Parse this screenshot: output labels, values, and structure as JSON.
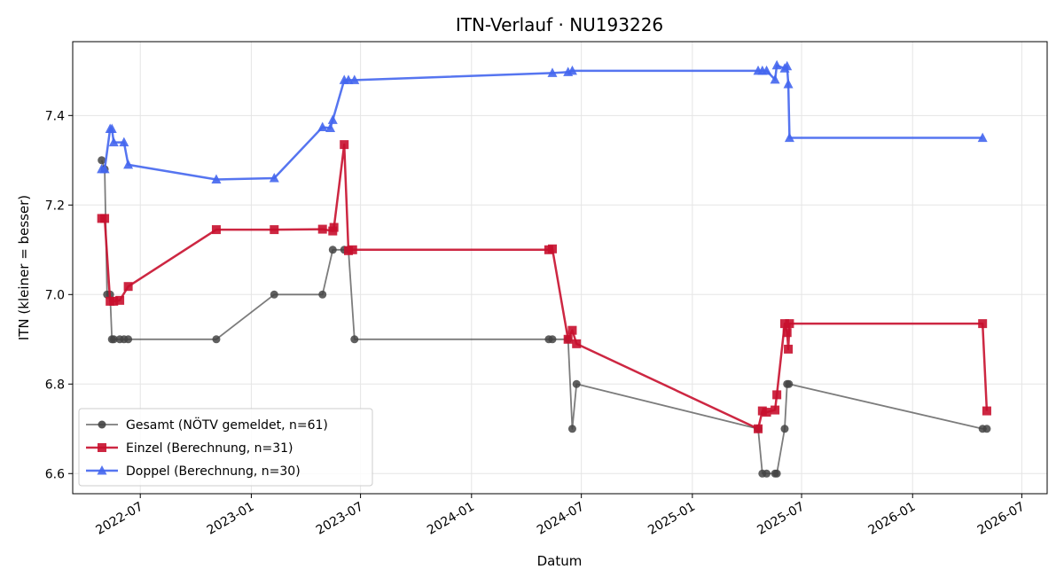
{
  "chart_data": {
    "type": "line",
    "title": "ITN-Verlauf · NU193226",
    "xlabel": "Datum",
    "ylabel": "ITN  (kleiner = besser)",
    "x_ticks": [
      "2022-07",
      "2023-01",
      "2023-07",
      "2024-01",
      "2024-07",
      "2025-01",
      "2025-07",
      "2026-01",
      "2026-07"
    ],
    "y_ticks": [
      6.6,
      6.8,
      7.0,
      7.2,
      7.4
    ],
    "xlim": [
      "2022-03-11",
      "2026-08-12"
    ],
    "ylim": [
      6.555,
      7.565
    ],
    "grid": true,
    "legend_position": "lower-left",
    "series": [
      {
        "name": "Gesamt (NÖTV gemeldet, n=61)",
        "color": "#444444",
        "marker": "circle",
        "points": [
          [
            "2022-04-28",
            7.3
          ],
          [
            "2022-05-03",
            7.28
          ],
          [
            "2022-05-07",
            7.0
          ],
          [
            "2022-05-12",
            7.0
          ],
          [
            "2022-05-15",
            6.9
          ],
          [
            "2022-05-18",
            6.9
          ],
          [
            "2022-05-28",
            6.9
          ],
          [
            "2022-06-04",
            6.9
          ],
          [
            "2022-06-11",
            6.9
          ],
          [
            "2022-11-04",
            6.9
          ],
          [
            "2023-02-08",
            7.0
          ],
          [
            "2023-04-29",
            7.0
          ],
          [
            "2023-05-16",
            7.1
          ],
          [
            "2023-06-04",
            7.1
          ],
          [
            "2023-06-11",
            7.1
          ],
          [
            "2023-06-21",
            6.9
          ],
          [
            "2024-05-08",
            6.9
          ],
          [
            "2024-05-14",
            6.9
          ],
          [
            "2024-06-09",
            6.9
          ],
          [
            "2024-06-16",
            6.7
          ],
          [
            "2024-06-23",
            6.8
          ],
          [
            "2025-04-20",
            6.7
          ],
          [
            "2025-04-27",
            6.6
          ],
          [
            "2025-05-04",
            6.6
          ],
          [
            "2025-05-18",
            6.6
          ],
          [
            "2025-05-21",
            6.6
          ],
          [
            "2025-06-03",
            6.7
          ],
          [
            "2025-06-07",
            6.8
          ],
          [
            "2025-06-10",
            6.8
          ],
          [
            "2026-04-27",
            6.7
          ],
          [
            "2026-05-04",
            6.7
          ]
        ]
      },
      {
        "name": "Einzel (Berechnung, n=31)",
        "color": "#C8102E",
        "marker": "square",
        "points": [
          [
            "2022-04-28",
            7.17
          ],
          [
            "2022-05-03",
            7.17
          ],
          [
            "2022-05-12",
            6.985
          ],
          [
            "2022-05-18",
            6.985
          ],
          [
            "2022-05-28",
            6.987
          ],
          [
            "2022-06-11",
            7.018
          ],
          [
            "2022-11-04",
            7.145
          ],
          [
            "2023-02-08",
            7.145
          ],
          [
            "2023-04-29",
            7.146
          ],
          [
            "2023-05-16",
            7.142
          ],
          [
            "2023-05-18",
            7.15
          ],
          [
            "2023-06-04",
            7.335
          ],
          [
            "2023-06-11",
            7.098
          ],
          [
            "2023-06-18",
            7.1
          ],
          [
            "2024-05-08",
            7.1
          ],
          [
            "2024-05-14",
            7.102
          ],
          [
            "2024-06-09",
            6.9
          ],
          [
            "2024-06-16",
            6.92
          ],
          [
            "2024-06-23",
            6.89
          ],
          [
            "2025-04-20",
            6.7
          ],
          [
            "2025-04-27",
            6.74
          ],
          [
            "2025-05-04",
            6.737
          ],
          [
            "2025-05-18",
            6.742
          ],
          [
            "2025-05-21",
            6.776
          ],
          [
            "2025-06-03",
            6.935
          ],
          [
            "2025-06-07",
            6.915
          ],
          [
            "2025-06-09",
            6.878
          ],
          [
            "2025-06-11",
            6.935
          ],
          [
            "2026-04-27",
            6.935
          ],
          [
            "2026-05-04",
            6.74
          ]
        ]
      },
      {
        "name": "Doppel (Berechnung, n=30)",
        "color": "#4466EE",
        "marker": "triangle",
        "points": [
          [
            "2022-04-28",
            7.28
          ],
          [
            "2022-05-03",
            7.28
          ],
          [
            "2022-05-12",
            7.37
          ],
          [
            "2022-05-15",
            7.37
          ],
          [
            "2022-05-18",
            7.34
          ],
          [
            "2022-06-04",
            7.34
          ],
          [
            "2022-06-11",
            7.29
          ],
          [
            "2022-11-04",
            7.257
          ],
          [
            "2023-02-08",
            7.26
          ],
          [
            "2023-04-29",
            7.374
          ],
          [
            "2023-05-12",
            7.372
          ],
          [
            "2023-05-16",
            7.39
          ],
          [
            "2023-06-04",
            7.479
          ],
          [
            "2023-06-11",
            7.479
          ],
          [
            "2023-06-21",
            7.479
          ],
          [
            "2024-05-14",
            7.495
          ],
          [
            "2024-06-09",
            7.497
          ],
          [
            "2024-06-16",
            7.5
          ],
          [
            "2025-04-20",
            7.5
          ],
          [
            "2025-04-27",
            7.5
          ],
          [
            "2025-05-04",
            7.5
          ],
          [
            "2025-05-18",
            7.48
          ],
          [
            "2025-05-21",
            7.512
          ],
          [
            "2025-06-03",
            7.505
          ],
          [
            "2025-06-07",
            7.51
          ],
          [
            "2025-06-09",
            7.47
          ],
          [
            "2025-06-11",
            7.35
          ],
          [
            "2026-04-27",
            7.35
          ]
        ]
      }
    ]
  }
}
